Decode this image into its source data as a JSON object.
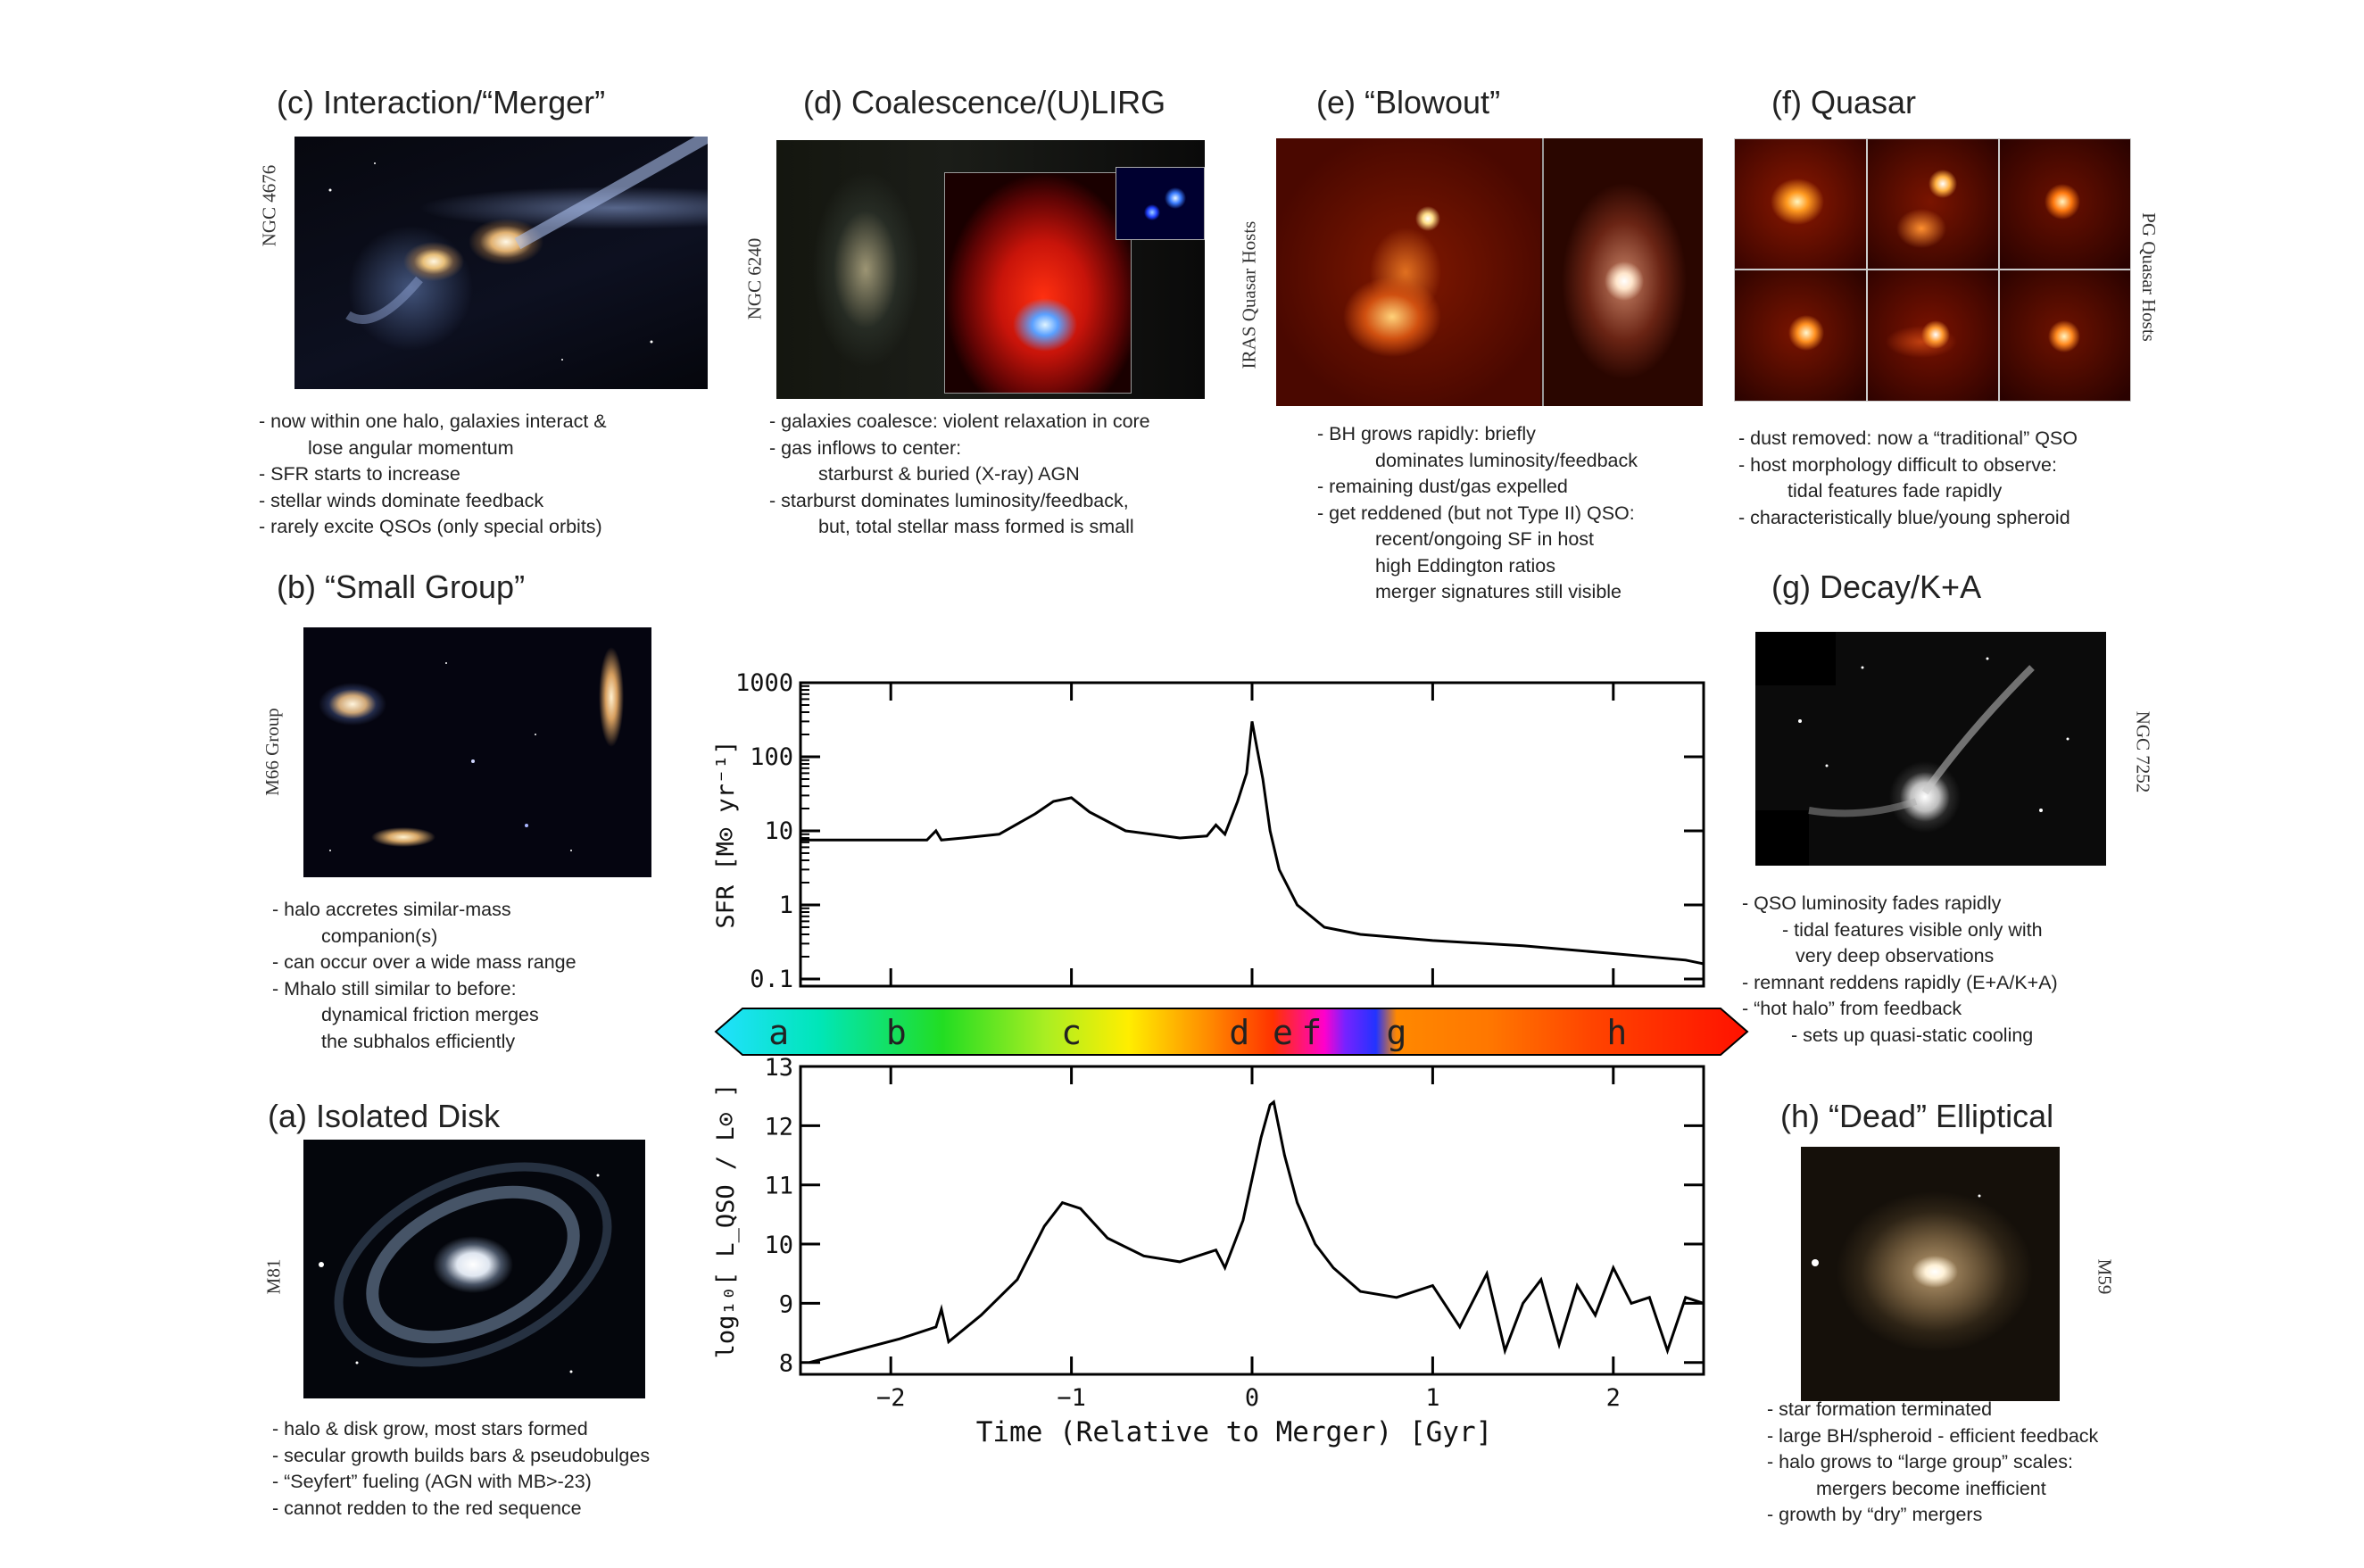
{
  "panels": {
    "c": {
      "title": "(c) Interaction/“Merger”",
      "side_label": "NGC 4676",
      "bullets": [
        "- now within one halo, galaxies interact &",
        "lose angular momentum",
        "- SFR starts to increase",
        "- stellar winds dominate feedback",
        "- rarely excite QSOs (only special orbits)"
      ]
    },
    "d": {
      "title": "(d) Coalescence/(U)LIRG",
      "side_label": "NGC 6240",
      "bullets": [
        "- galaxies coalesce: violent relaxation in core",
        "- gas inflows to center:",
        "starburst & buried (X-ray) AGN",
        "- starburst dominates luminosity/feedback,",
        "but, total stellar mass formed is small"
      ]
    },
    "e": {
      "title": "(e) “Blowout”",
      "side_label": "IRAS Quasar Hosts",
      "bullets": [
        "- BH grows rapidly: briefly",
        "dominates luminosity/feedback",
        "- remaining dust/gas expelled",
        "- get reddened (but not Type II) QSO:",
        "recent/ongoing SF in host",
        "high Eddington ratios",
        "merger signatures still visible"
      ]
    },
    "f": {
      "title": "(f) Quasar",
      "side_label": "PG Quasar Hosts",
      "bullets": [
        "- dust removed: now a “traditional” QSO",
        "- host morphology difficult to observe:",
        "tidal features fade rapidly",
        "- characteristically blue/young spheroid"
      ]
    },
    "b": {
      "title": "(b) “Small Group”",
      "side_label": "M66 Group",
      "bullets": [
        "- halo accretes similar-mass",
        "companion(s)",
        "- can occur over a wide mass range",
        "- Mhalo still similar to before:",
        "dynamical friction merges",
        "the subhalos efficiently"
      ]
    },
    "g": {
      "title": "(g) Decay/K+A",
      "side_label": "NGC 7252",
      "bullets": [
        "- QSO luminosity fades rapidly",
        "- tidal features visible only with",
        "very deep observations",
        "- remnant reddens rapidly (E+A/K+A)",
        "- “hot halo” from feedback",
        "- sets up quasi-static cooling"
      ]
    },
    "a": {
      "title": "(a) Isolated Disk",
      "side_label": "M81",
      "bullets": [
        "- halo & disk grow, most stars formed",
        "- secular growth builds bars & pseudobulges",
        "- “Seyfert” fueling (AGN with MB>-23)",
        "- cannot redden to the red sequence"
      ]
    },
    "h": {
      "title": "(h) “Dead” Elliptical",
      "side_label": "M59",
      "bullets": [
        "- star formation terminated",
        "- large BH/spheroid - efficient feedback",
        "- halo grows to “large group” scales:",
        "mergers become inefficient",
        "- growth by “dry” mergers"
      ]
    }
  },
  "stage_bar": {
    "letters": [
      "a",
      "b",
      "c",
      "d",
      "e",
      "f",
      "g",
      "h"
    ],
    "letter_times": [
      -2.62,
      -1.97,
      -1.0,
      -0.07,
      0.17,
      0.33,
      0.8,
      2.02
    ]
  },
  "chart_data": [
    {
      "type": "line",
      "ylabel": "SFR  [M⊙ yr⁻¹]",
      "yscale": "log",
      "ylim": [
        0.08,
        1000
      ],
      "xlim": [
        -2.5,
        2.5
      ],
      "yticks": [
        "1000",
        "100",
        "10",
        "1",
        "0.1"
      ],
      "x": [
        -2.5,
        -2.2,
        -1.8,
        -1.75,
        -1.72,
        -1.6,
        -1.4,
        -1.2,
        -1.1,
        -1.0,
        -0.9,
        -0.7,
        -0.4,
        -0.25,
        -0.2,
        -0.15,
        -0.08,
        -0.03,
        0.0,
        0.03,
        0.06,
        0.1,
        0.15,
        0.25,
        0.4,
        0.6,
        1.0,
        1.5,
        2.0,
        2.4,
        2.5
      ],
      "values": [
        7.5,
        7.5,
        7.5,
        10,
        7.5,
        8,
        9,
        17,
        25,
        28,
        18,
        10,
        8,
        8.5,
        12,
        9,
        25,
        60,
        300,
        120,
        50,
        10,
        3,
        1,
        0.5,
        0.4,
        0.33,
        0.28,
        0.22,
        0.18,
        0.16
      ]
    },
    {
      "type": "line",
      "ylabel": "log₁₀[ L_QSO / L⊙ ]",
      "ylim": [
        7.8,
        13
      ],
      "xlim": [
        -2.5,
        2.5
      ],
      "yticks": [
        "13",
        "12",
        "11",
        "10",
        "9",
        "8"
      ],
      "xticks": [
        "−2",
        "−1",
        "0",
        "1",
        "2"
      ],
      "xlabel": "Time (Relative to Merger)  [Gyr]",
      "x": [
        -2.45,
        -2.2,
        -1.95,
        -1.75,
        -1.72,
        -1.68,
        -1.5,
        -1.3,
        -1.15,
        -1.05,
        -0.95,
        -0.8,
        -0.6,
        -0.4,
        -0.2,
        -0.15,
        -0.1,
        -0.05,
        0.0,
        0.05,
        0.1,
        0.12,
        0.18,
        0.25,
        0.35,
        0.45,
        0.6,
        0.8,
        1.0,
        1.15,
        1.3,
        1.4,
        1.5,
        1.6,
        1.7,
        1.8,
        1.9,
        2.0,
        2.1,
        2.2,
        2.3,
        2.4,
        2.5
      ],
      "values": [
        8.0,
        8.2,
        8.4,
        8.6,
        8.9,
        8.35,
        8.8,
        9.4,
        10.3,
        10.7,
        10.6,
        10.1,
        9.8,
        9.7,
        9.9,
        9.6,
        10.0,
        10.4,
        11.1,
        11.8,
        12.35,
        12.4,
        11.5,
        10.7,
        10.0,
        9.6,
        9.2,
        9.1,
        9.3,
        8.6,
        9.5,
        8.2,
        9.0,
        9.4,
        8.3,
        9.3,
        8.8,
        9.6,
        9.0,
        9.1,
        8.2,
        9.1,
        9.0
      ]
    }
  ]
}
